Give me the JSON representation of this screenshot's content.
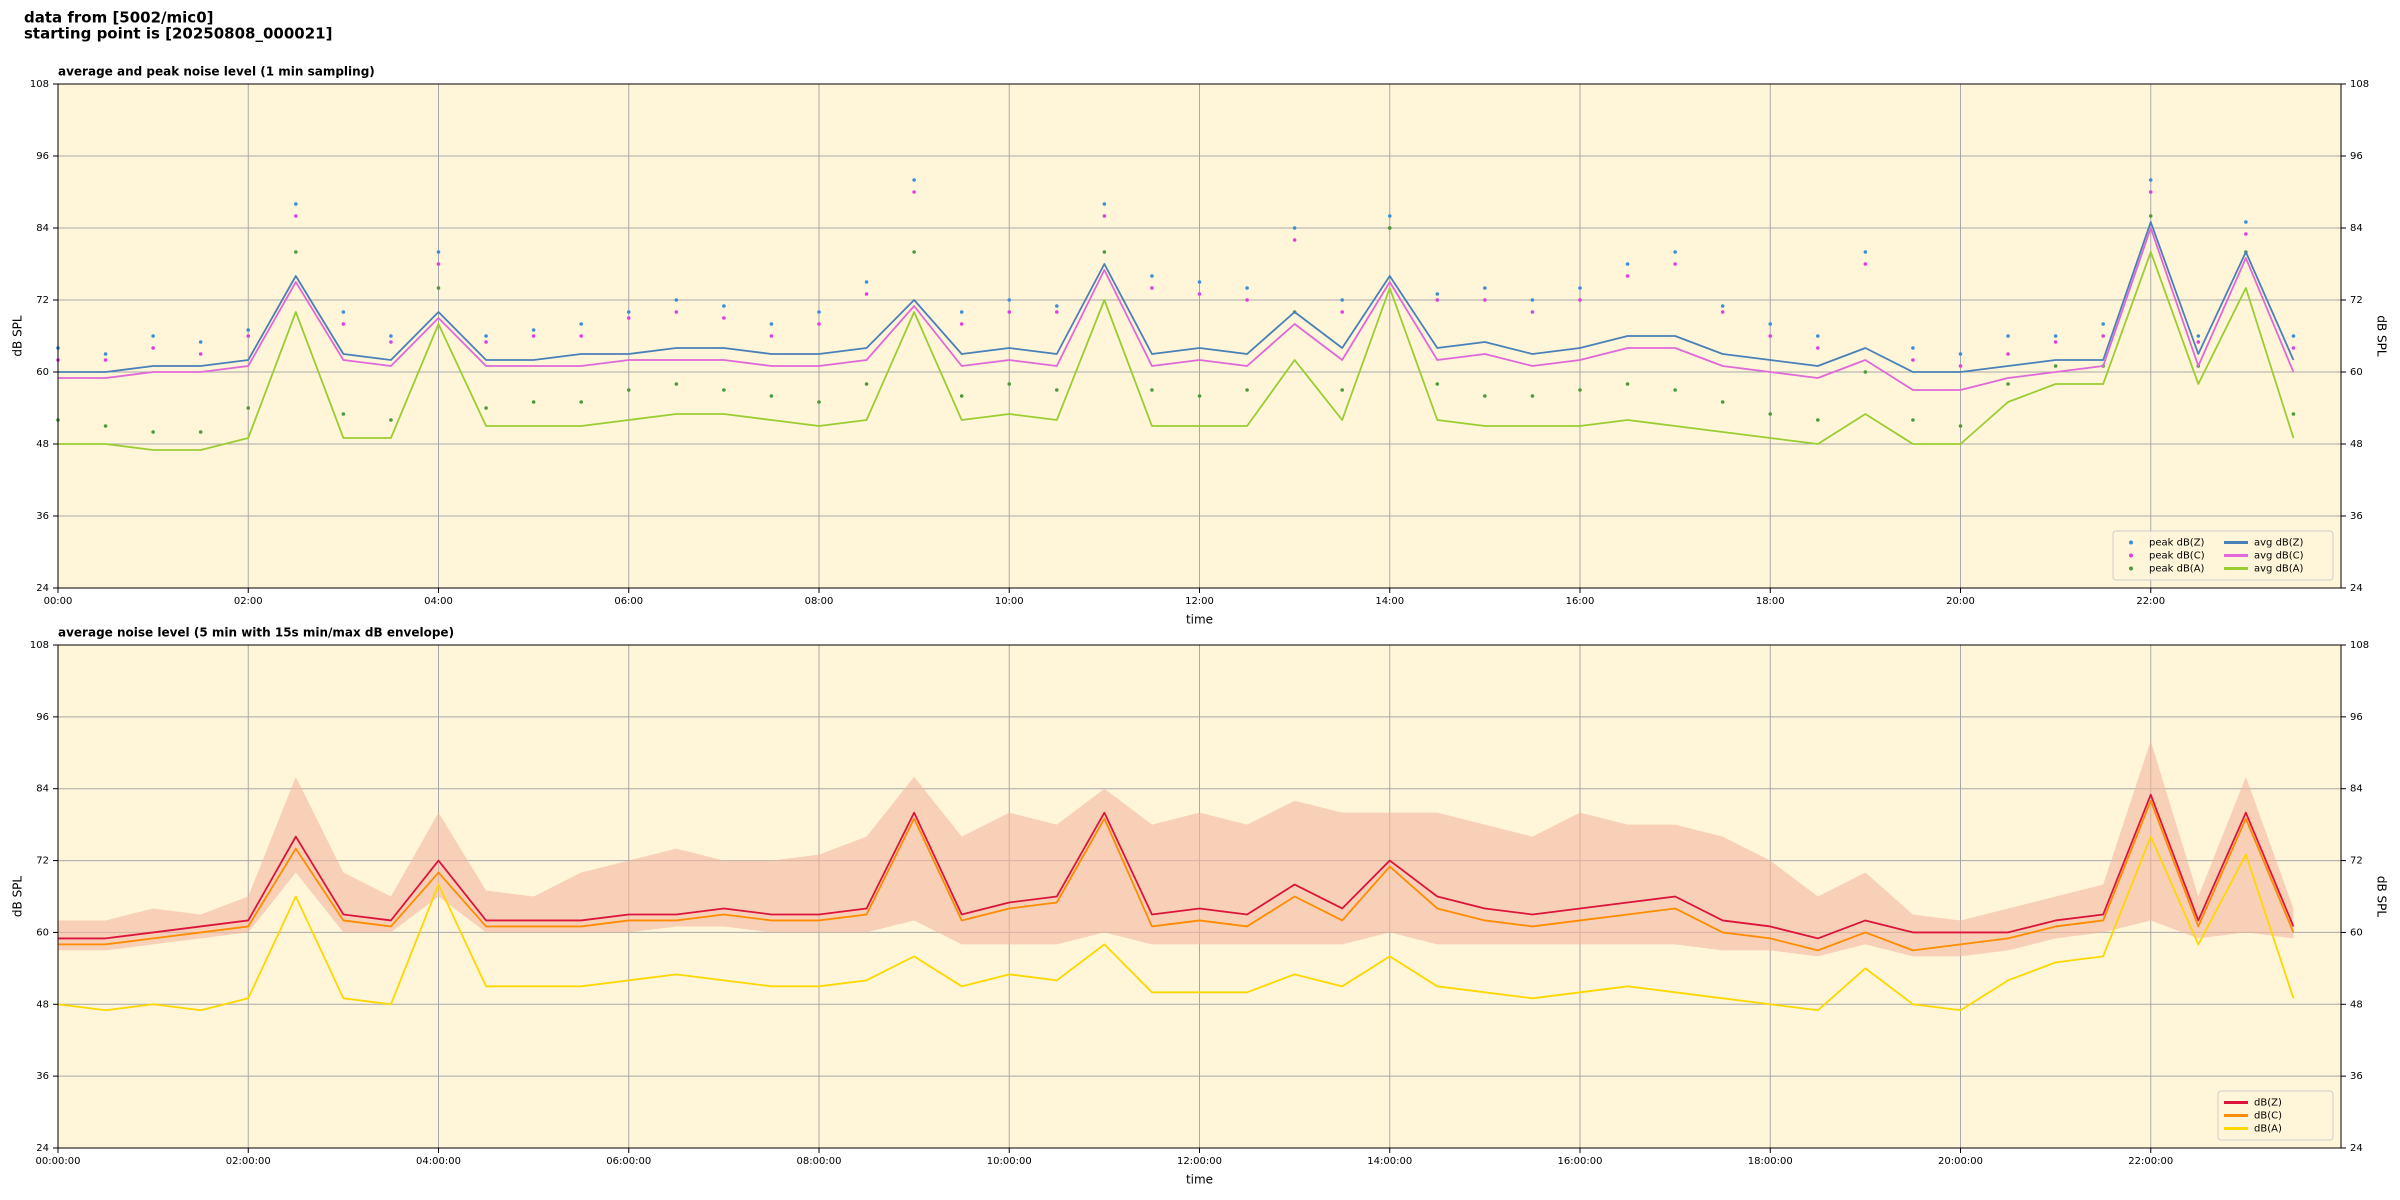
{
  "header": {
    "lines": [
      "data from [5002/mic0]",
      "starting point is [20250808_000021]"
    ]
  },
  "chart_data": [
    {
      "type": "line",
      "title": "average and peak noise level (1 min sampling)",
      "xlabel": "time",
      "ylabel": "dB SPL",
      "background": "#fff6d9",
      "grid": true,
      "legend": "lower right",
      "legend_columns": 2,
      "xlim": [
        0,
        24
      ],
      "ylim": [
        24,
        108
      ],
      "yticks": [
        24,
        36,
        48,
        60,
        72,
        84,
        96,
        108
      ],
      "xticks": [
        {
          "value": 0,
          "label": "00:00"
        },
        {
          "value": 2,
          "label": "02:00"
        },
        {
          "value": 4,
          "label": "04:00"
        },
        {
          "value": 6,
          "label": "06:00"
        },
        {
          "value": 8,
          "label": "08:00"
        },
        {
          "value": 10,
          "label": "10:00"
        },
        {
          "value": 12,
          "label": "12:00"
        },
        {
          "value": 14,
          "label": "14:00"
        },
        {
          "value": 16,
          "label": "16:00"
        },
        {
          "value": 18,
          "label": "18:00"
        },
        {
          "value": 20,
          "label": "20:00"
        },
        {
          "value": 22,
          "label": "22:00"
        }
      ],
      "x": [
        0,
        0.5,
        1,
        1.5,
        2,
        2.5,
        3,
        3.5,
        4,
        4.5,
        5,
        5.5,
        6,
        6.5,
        7,
        7.5,
        8,
        8.5,
        9,
        9.5,
        10,
        10.5,
        11,
        11.5,
        12,
        12.5,
        13,
        13.5,
        14,
        14.5,
        15,
        15.5,
        16,
        16.5,
        17,
        17.5,
        18,
        18.5,
        19,
        19.5,
        20,
        20.5,
        21,
        21.5,
        22,
        22.5,
        23,
        23.5
      ],
      "series": [
        {
          "name": "peak dB(Z)",
          "kind": "scatter",
          "color": "#3a8fd8",
          "values": [
            64,
            63,
            66,
            65,
            67,
            88,
            70,
            66,
            80,
            66,
            67,
            68,
            70,
            72,
            71,
            68,
            70,
            75,
            92,
            70,
            72,
            71,
            88,
            76,
            75,
            74,
            84,
            72,
            86,
            73,
            74,
            72,
            74,
            78,
            80,
            71,
            68,
            66,
            80,
            64,
            63,
            66,
            66,
            68,
            92,
            66,
            85,
            66
          ]
        },
        {
          "name": "peak dB(C)",
          "kind": "scatter",
          "color": "#e03ee0",
          "values": [
            62,
            62,
            64,
            63,
            66,
            86,
            68,
            65,
            78,
            65,
            66,
            66,
            69,
            70,
            69,
            66,
            68,
            73,
            90,
            68,
            70,
            70,
            86,
            74,
            73,
            72,
            82,
            70,
            84,
            72,
            72,
            70,
            72,
            76,
            78,
            70,
            66,
            64,
            78,
            62,
            61,
            63,
            65,
            66,
            90,
            65,
            83,
            64
          ]
        },
        {
          "name": "peak dB(A)",
          "kind": "scatter",
          "color": "#4c9a3c",
          "values": [
            52,
            51,
            50,
            50,
            54,
            80,
            53,
            52,
            74,
            54,
            55,
            55,
            57,
            58,
            57,
            56,
            55,
            58,
            80,
            56,
            58,
            57,
            80,
            57,
            56,
            57,
            70,
            57,
            84,
            58,
            56,
            56,
            57,
            58,
            57,
            55,
            53,
            52,
            60,
            52,
            51,
            58,
            61,
            61,
            86,
            61,
            80,
            53
          ]
        },
        {
          "name": "avg dB(Z)",
          "kind": "line",
          "color": "#4a80b8",
          "values": [
            60,
            60,
            61,
            61,
            62,
            76,
            63,
            62,
            70,
            62,
            62,
            63,
            63,
            64,
            64,
            63,
            63,
            64,
            72,
            63,
            64,
            63,
            78,
            63,
            64,
            63,
            70,
            64,
            76,
            64,
            65,
            63,
            64,
            66,
            66,
            63,
            62,
            61,
            64,
            60,
            60,
            61,
            62,
            62,
            85,
            63,
            80,
            62
          ]
        },
        {
          "name": "avg dB(C)",
          "kind": "line",
          "color": "#e068d8",
          "values": [
            59,
            59,
            60,
            60,
            61,
            75,
            62,
            61,
            69,
            61,
            61,
            61,
            62,
            62,
            62,
            61,
            61,
            62,
            71,
            61,
            62,
            61,
            77,
            61,
            62,
            61,
            68,
            62,
            75,
            62,
            63,
            61,
            62,
            64,
            64,
            61,
            60,
            59,
            62,
            57,
            57,
            59,
            60,
            61,
            84,
            61,
            79,
            60
          ]
        },
        {
          "name": "avg dB(A)",
          "kind": "line",
          "color": "#9acd32",
          "values": [
            48,
            48,
            47,
            47,
            49,
            70,
            49,
            49,
            68,
            51,
            51,
            51,
            52,
            53,
            53,
            52,
            51,
            52,
            70,
            52,
            53,
            52,
            72,
            51,
            51,
            51,
            62,
            52,
            74,
            52,
            51,
            51,
            51,
            52,
            51,
            50,
            49,
            48,
            53,
            48,
            48,
            55,
            58,
            58,
            80,
            58,
            74,
            49
          ]
        }
      ]
    },
    {
      "type": "line",
      "title": "average noise level (5 min with 15s min/max dB envelope)",
      "xlabel": "time",
      "ylabel": "dB SPL",
      "background": "#fff6d9",
      "grid": true,
      "legend": "lower right",
      "legend_columns": 1,
      "xlim": [
        0,
        24
      ],
      "ylim": [
        24,
        108
      ],
      "yticks": [
        24,
        36,
        48,
        60,
        72,
        84,
        96,
        108
      ],
      "xticks": [
        {
          "value": 0,
          "label": "00:00:00"
        },
        {
          "value": 2,
          "label": "02:00:00"
        },
        {
          "value": 4,
          "label": "04:00:00"
        },
        {
          "value": 6,
          "label": "06:00:00"
        },
        {
          "value": 8,
          "label": "08:00:00"
        },
        {
          "value": 10,
          "label": "10:00:00"
        },
        {
          "value": 12,
          "label": "12:00:00"
        },
        {
          "value": 14,
          "label": "14:00:00"
        },
        {
          "value": 16,
          "label": "16:00:00"
        },
        {
          "value": 18,
          "label": "18:00:00"
        },
        {
          "value": 20,
          "label": "20:00:00"
        },
        {
          "value": 22,
          "label": "22:00:00"
        }
      ],
      "x": [
        0,
        0.5,
        1,
        1.5,
        2,
        2.5,
        3,
        3.5,
        4,
        4.5,
        5,
        5.5,
        6,
        6.5,
        7,
        7.5,
        8,
        8.5,
        9,
        9.5,
        10,
        10.5,
        11,
        11.5,
        12,
        12.5,
        13,
        13.5,
        14,
        14.5,
        15,
        15.5,
        16,
        16.5,
        17,
        17.5,
        18,
        18.5,
        19,
        19.5,
        20,
        20.5,
        21,
        21.5,
        22,
        22.5,
        23,
        23.5
      ],
      "envelope": {
        "color": "#f4b8a0",
        "upper": [
          62,
          62,
          64,
          63,
          66,
          86,
          70,
          66,
          80,
          67,
          66,
          70,
          72,
          74,
          72,
          72,
          73,
          76,
          86,
          76,
          80,
          78,
          84,
          78,
          80,
          78,
          82,
          80,
          80,
          80,
          78,
          76,
          80,
          78,
          78,
          76,
          72,
          66,
          70,
          63,
          62,
          64,
          66,
          68,
          92,
          66,
          86,
          64
        ],
        "lower": [
          57,
          57,
          58,
          59,
          60,
          70,
          60,
          60,
          66,
          60,
          60,
          60,
          60,
          61,
          61,
          60,
          60,
          60,
          62,
          58,
          58,
          58,
          60,
          58,
          58,
          58,
          58,
          58,
          60,
          58,
          58,
          58,
          58,
          58,
          58,
          57,
          57,
          56,
          58,
          56,
          56,
          57,
          59,
          60,
          62,
          59,
          60,
          59
        ]
      },
      "series": [
        {
          "name": "dB(Z)",
          "kind": "line",
          "color": "#dc143c",
          "values": [
            59,
            59,
            60,
            61,
            62,
            76,
            63,
            62,
            72,
            62,
            62,
            62,
            63,
            63,
            64,
            63,
            63,
            64,
            80,
            63,
            65,
            66,
            80,
            63,
            64,
            63,
            68,
            64,
            72,
            66,
            64,
            63,
            64,
            65,
            66,
            62,
            61,
            59,
            62,
            60,
            60,
            60,
            62,
            63,
            83,
            62,
            80,
            61
          ]
        },
        {
          "name": "dB(C)",
          "kind": "line",
          "color": "#ff8c00",
          "values": [
            58,
            58,
            59,
            60,
            61,
            74,
            62,
            61,
            70,
            61,
            61,
            61,
            62,
            62,
            63,
            62,
            62,
            63,
            79,
            62,
            64,
            65,
            79,
            61,
            62,
            61,
            66,
            62,
            71,
            64,
            62,
            61,
            62,
            63,
            64,
            60,
            59,
            57,
            60,
            57,
            58,
            59,
            61,
            62,
            82,
            61,
            79,
            60
          ]
        },
        {
          "name": "dB(A)",
          "kind": "line",
          "color": "#ffd700",
          "values": [
            48,
            47,
            48,
            47,
            49,
            66,
            49,
            48,
            68,
            51,
            51,
            51,
            52,
            53,
            52,
            51,
            51,
            52,
            56,
            51,
            53,
            52,
            58,
            50,
            50,
            50,
            53,
            51,
            56,
            51,
            50,
            49,
            50,
            51,
            50,
            49,
            48,
            47,
            54,
            48,
            47,
            52,
            55,
            56,
            76,
            58,
            73,
            49
          ]
        }
      ]
    }
  ]
}
